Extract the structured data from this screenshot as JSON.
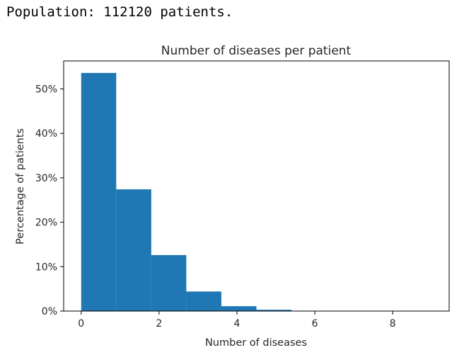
{
  "output": {
    "text": "Population: 112120 patients."
  },
  "colors": {
    "bar": "#1f77b4",
    "axes": "#000000",
    "text": "#262626"
  },
  "chart_data": {
    "type": "bar",
    "title": "Number of diseases per patient",
    "xlabel": "Number of diseases",
    "ylabel": "Percentage of patients",
    "x_ticks": [
      0,
      2,
      4,
      6,
      8
    ],
    "x_tick_labels": [
      "0",
      "2",
      "4",
      "6",
      "8"
    ],
    "y_ticks": [
      0,
      10,
      20,
      30,
      40,
      50
    ],
    "y_tick_labels": [
      "0%",
      "10%",
      "20%",
      "30%",
      "40%",
      "50%"
    ],
    "xlim": [
      -0.45,
      9.45
    ],
    "ylim": [
      0,
      56.3
    ],
    "grid": false,
    "bins": [
      {
        "from": 0.0,
        "to": 0.9,
        "value": 53.6
      },
      {
        "from": 0.9,
        "to": 1.8,
        "value": 27.4
      },
      {
        "from": 1.8,
        "to": 2.7,
        "value": 12.6
      },
      {
        "from": 2.7,
        "to": 3.6,
        "value": 4.4
      },
      {
        "from": 3.6,
        "to": 4.5,
        "value": 1.1
      },
      {
        "from": 4.5,
        "to": 5.4,
        "value": 0.3
      },
      {
        "from": 5.4,
        "to": 6.3,
        "value": 0.05
      },
      {
        "from": 6.3,
        "to": 7.2,
        "value": 0.01
      },
      {
        "from": 7.2,
        "to": 8.1,
        "value": 0.0
      },
      {
        "from": 8.1,
        "to": 9.0,
        "value": 0.0
      }
    ]
  }
}
